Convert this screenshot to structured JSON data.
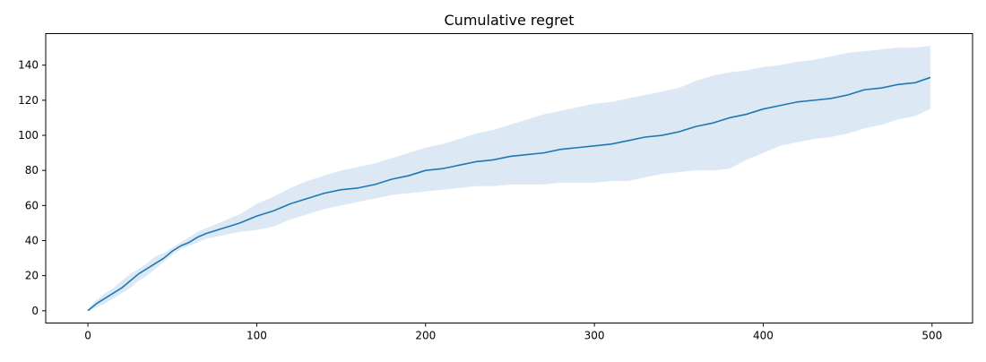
{
  "chart_data": {
    "type": "line",
    "title": "Cumulative regret",
    "xlabel": "",
    "ylabel": "",
    "xlim": [
      -25,
      524
    ],
    "ylim": [
      -7,
      158
    ],
    "grid": false,
    "legend": "none",
    "x_ticks": [
      0,
      100,
      200,
      300,
      400,
      500
    ],
    "y_ticks": [
      0,
      20,
      40,
      60,
      80,
      100,
      120,
      140
    ],
    "colors": {
      "line": "#1f77b4",
      "band": "#dce9f4",
      "axes": "#000000",
      "background": "#ffffff"
    },
    "series": [
      {
        "x": [
          0,
          5,
          10,
          15,
          20,
          25,
          30,
          35,
          40,
          45,
          50,
          55,
          60,
          65,
          70,
          80,
          90,
          100,
          110,
          120,
          130,
          140,
          150,
          160,
          170,
          180,
          190,
          200,
          210,
          220,
          230,
          240,
          250,
          260,
          270,
          280,
          290,
          300,
          310,
          320,
          330,
          340,
          350,
          360,
          370,
          380,
          390,
          400,
          410,
          420,
          430,
          440,
          450,
          460,
          470,
          480,
          490,
          499
        ],
        "mean": [
          0,
          4,
          7,
          10,
          13,
          17,
          21,
          24,
          27,
          30,
          34,
          37,
          39,
          42,
          44,
          47,
          50,
          54,
          57,
          61,
          64,
          67,
          69,
          70,
          72,
          75,
          77,
          80,
          81,
          83,
          85,
          86,
          88,
          89,
          90,
          92,
          93,
          94,
          95,
          97,
          99,
          100,
          102,
          105,
          107,
          110,
          112,
          115,
          117,
          119,
          120,
          121,
          123,
          126,
          127,
          129,
          130,
          133
        ],
        "lower": [
          0,
          2,
          4,
          7,
          10,
          13,
          17,
          20,
          24,
          28,
          32,
          35,
          37,
          39,
          41,
          43,
          45,
          46,
          48,
          52,
          55,
          58,
          60,
          62,
          64,
          66,
          67,
          68,
          69,
          70,
          71,
          71,
          72,
          72,
          72,
          73,
          73,
          73,
          74,
          74,
          76,
          78,
          79,
          80,
          80,
          81,
          86,
          90,
          94,
          96,
          98,
          99,
          101,
          104,
          106,
          109,
          111,
          115
        ],
        "upper": [
          1,
          6,
          10,
          13,
          17,
          21,
          24,
          27,
          31,
          33,
          36,
          39,
          42,
          45,
          47,
          51,
          55,
          61,
          65,
          70,
          74,
          77,
          80,
          82,
          84,
          87,
          90,
          93,
          95,
          98,
          101,
          103,
          106,
          109,
          112,
          114,
          116,
          118,
          119,
          121,
          123,
          125,
          127,
          131,
          134,
          136,
          137,
          139,
          140,
          142,
          143,
          145,
          147,
          148,
          149,
          150,
          150,
          151
        ]
      }
    ]
  }
}
